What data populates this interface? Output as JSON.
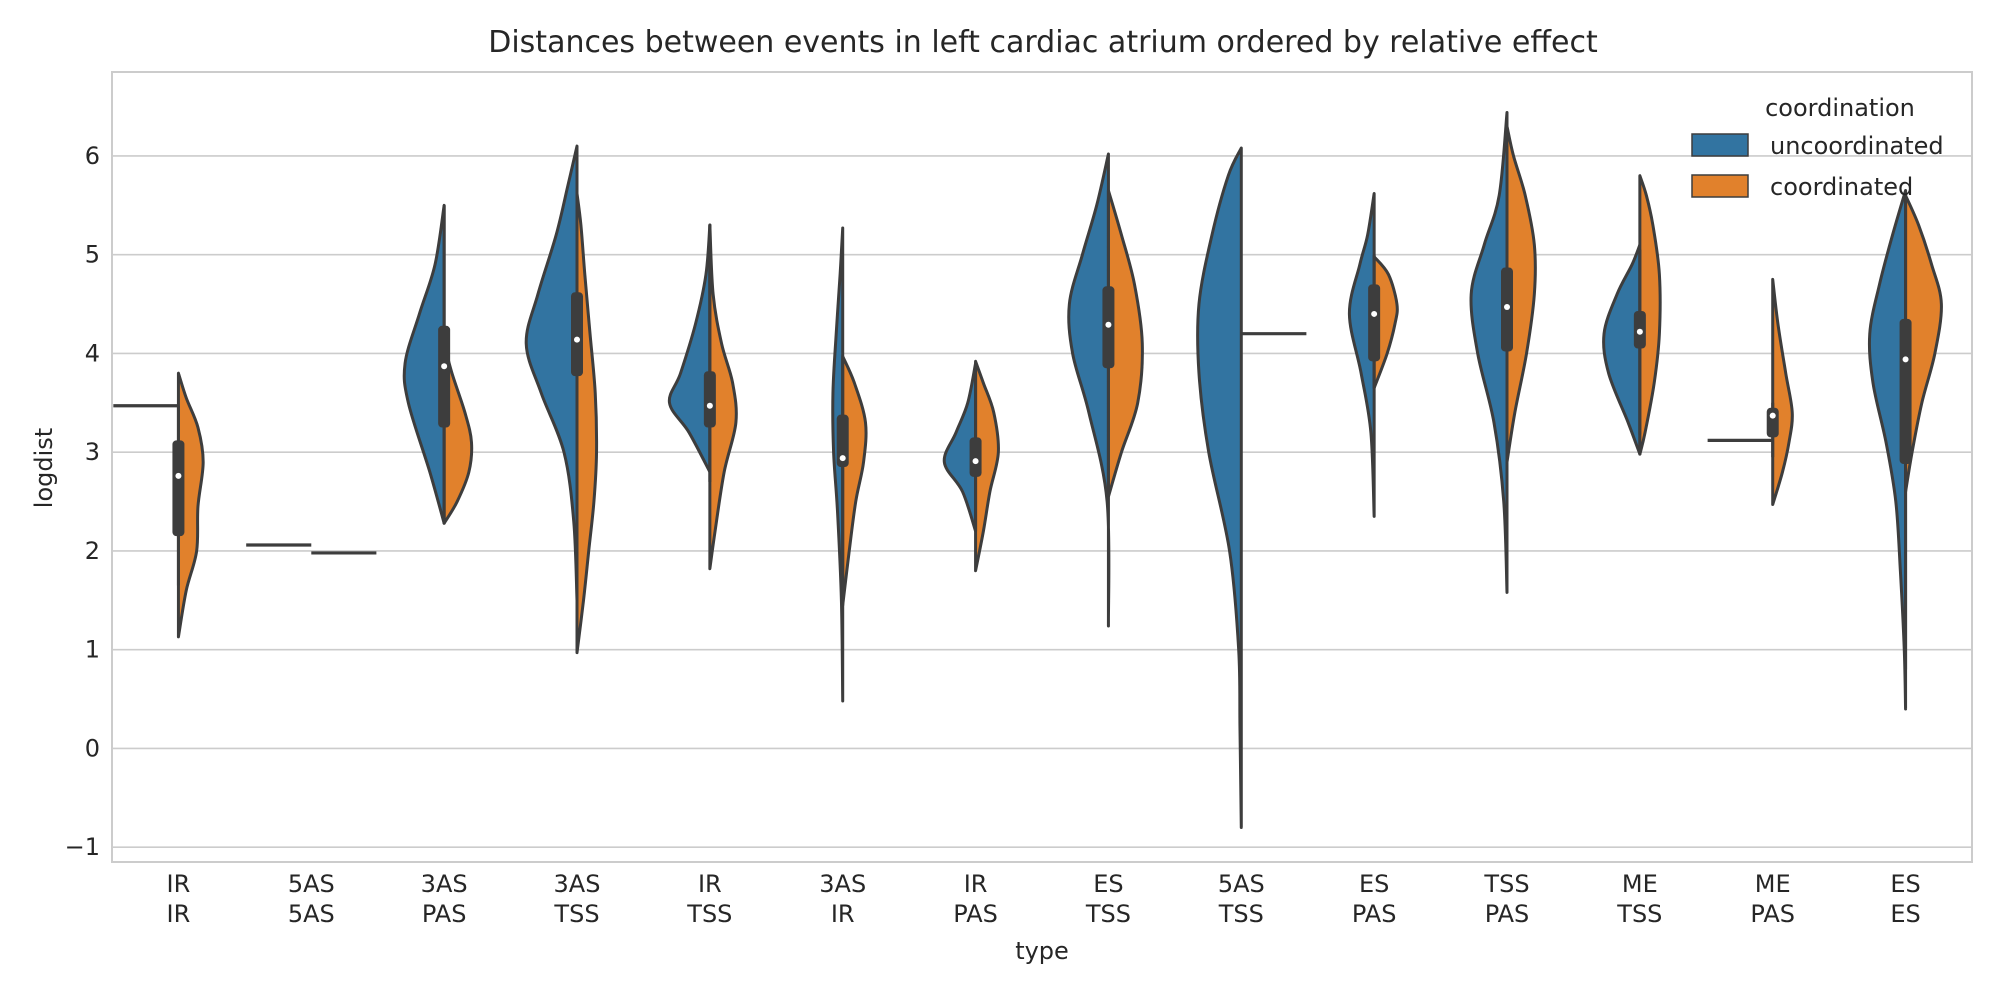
{
  "chart_data": {
    "type": "violin",
    "title": "Distances between events in left cardiac atrium ordered by relative effect",
    "xlabel": "type",
    "ylabel": "logdist",
    "ylim": [
      -1.15,
      6.85
    ],
    "yticks": [
      -1,
      0,
      1,
      2,
      3,
      4,
      5,
      6
    ],
    "ytick_labels": [
      "−1",
      "0",
      "1",
      "2",
      "3",
      "4",
      "5",
      "6"
    ],
    "grid": "horizontal",
    "legend": {
      "title": "coordination",
      "placement": "top-right",
      "entries": [
        "uncoordinated",
        "coordinated"
      ]
    },
    "colors": {
      "uncoordinated": "#3274a1",
      "coordinated": "#e1812c",
      "outline": "#3d3d3d",
      "grid": "#cccccc",
      "spine": "#cccccc"
    },
    "categories": [
      [
        "IR",
        "IR"
      ],
      [
        "5AS",
        "5AS"
      ],
      [
        "3AS",
        "PAS"
      ],
      [
        "3AS",
        "TSS"
      ],
      [
        "IR",
        "TSS"
      ],
      [
        "3AS",
        "IR"
      ],
      [
        "IR",
        "PAS"
      ],
      [
        "ES",
        "TSS"
      ],
      [
        "5AS",
        "TSS"
      ],
      [
        "ES",
        "PAS"
      ],
      [
        "TSS",
        "PAS"
      ],
      [
        "ME",
        "TSS"
      ],
      [
        "ME",
        "PAS"
      ],
      [
        "ES",
        "ES"
      ]
    ],
    "violins": [
      {
        "left": {
          "single": 3.47
        },
        "right": {
          "points": [
            [
              1.13,
              0
            ],
            [
              1.6,
              0.12
            ],
            [
              2.0,
              0.28
            ],
            [
              2.45,
              0.3
            ],
            [
              2.9,
              0.38
            ],
            [
              3.25,
              0.3
            ],
            [
              3.55,
              0.12
            ],
            [
              3.8,
              0
            ]
          ]
        },
        "box": {
          "q1": 2.15,
          "q3": 3.12,
          "median": 2.76,
          "wlo": 1.65,
          "whi": 3.47
        }
      },
      {
        "left": {
          "single": 2.06
        },
        "right": {
          "single": 1.98
        }
      },
      {
        "left": {
          "points": [
            [
              2.28,
              0
            ],
            [
              2.8,
              0.22
            ],
            [
              3.5,
              0.55
            ],
            [
              3.9,
              0.6
            ],
            [
              4.4,
              0.38
            ],
            [
              4.9,
              0.14
            ],
            [
              5.5,
              0
            ]
          ]
        },
        "right": {
          "points": [
            [
              2.28,
              0
            ],
            [
              2.5,
              0.2
            ],
            [
              2.8,
              0.38
            ],
            [
              3.1,
              0.42
            ],
            [
              3.4,
              0.32
            ],
            [
              3.8,
              0.12
            ],
            [
              4.1,
              0
            ]
          ]
        },
        "box": {
          "q1": 3.25,
          "q3": 4.28,
          "median": 3.87,
          "wlo": 2.28,
          "whi": 5.5
        }
      },
      {
        "left": {
          "points": [
            [
              1.5,
              0
            ],
            [
              2.3,
              0.05
            ],
            [
              3.0,
              0.2
            ],
            [
              3.6,
              0.55
            ],
            [
              4.1,
              0.78
            ],
            [
              4.6,
              0.6
            ],
            [
              5.2,
              0.32
            ],
            [
              5.7,
              0.14
            ],
            [
              6.1,
              0
            ]
          ]
        },
        "right": {
          "points": [
            [
              0.97,
              0
            ],
            [
              1.5,
              0.1
            ],
            [
              2.0,
              0.18
            ],
            [
              2.5,
              0.26
            ],
            [
              3.0,
              0.3
            ],
            [
              3.6,
              0.28
            ],
            [
              4.2,
              0.2
            ],
            [
              4.8,
              0.12
            ],
            [
              5.3,
              0.06
            ],
            [
              5.62,
              0
            ]
          ]
        },
        "box": {
          "q1": 3.77,
          "q3": 4.62,
          "median": 4.14,
          "wlo": 1.5,
          "whi": 6.1
        }
      },
      {
        "left": {
          "points": [
            [
              2.8,
              0
            ],
            [
              3.2,
              0.32
            ],
            [
              3.5,
              0.62
            ],
            [
              3.8,
              0.45
            ],
            [
              4.3,
              0.22
            ],
            [
              4.8,
              0.06
            ],
            [
              5.3,
              0
            ]
          ]
        },
        "right": {
          "points": [
            [
              1.82,
              0
            ],
            [
              2.2,
              0.08
            ],
            [
              2.8,
              0.22
            ],
            [
              3.3,
              0.4
            ],
            [
              3.7,
              0.35
            ],
            [
              4.1,
              0.18
            ],
            [
              4.6,
              0.05
            ],
            [
              5.3,
              0
            ]
          ]
        },
        "box": {
          "q1": 3.25,
          "q3": 3.82,
          "median": 3.47,
          "wlo": 2.7,
          "whi": 5.3
        }
      },
      {
        "left": {
          "points": [
            [
              0.48,
              0
            ],
            [
              1.5,
              0.02
            ],
            [
              2.4,
              0.08
            ],
            [
              3.0,
              0.14
            ],
            [
              3.6,
              0.15
            ],
            [
              4.2,
              0.1
            ],
            [
              4.8,
              0.04
            ],
            [
              5.27,
              0
            ]
          ]
        },
        "right": {
          "points": [
            [
              1.45,
              0
            ],
            [
              2.0,
              0.1
            ],
            [
              2.5,
              0.2
            ],
            [
              2.9,
              0.32
            ],
            [
              3.3,
              0.35
            ],
            [
              3.7,
              0.18
            ],
            [
              3.97,
              0
            ]
          ]
        },
        "box": {
          "q1": 2.85,
          "q3": 3.38,
          "median": 2.94,
          "wlo": 1.5,
          "whi": 3.95
        }
      },
      {
        "left": {
          "points": [
            [
              2.2,
              0
            ],
            [
              2.6,
              0.2
            ],
            [
              2.9,
              0.48
            ],
            [
              3.2,
              0.3
            ],
            [
              3.5,
              0.12
            ],
            [
              3.9,
              0
            ]
          ]
        },
        "right": {
          "points": [
            [
              1.8,
              0
            ],
            [
              2.2,
              0.12
            ],
            [
              2.6,
              0.22
            ],
            [
              3.0,
              0.35
            ],
            [
              3.4,
              0.28
            ],
            [
              3.7,
              0.12
            ],
            [
              3.92,
              0
            ]
          ]
        },
        "box": {
          "q1": 2.75,
          "q3": 3.15,
          "median": 2.91,
          "wlo": 2.2,
          "whi": 3.85
        }
      },
      {
        "left": {
          "points": [
            [
              1.24,
              0
            ],
            [
              2.5,
              0.02
            ],
            [
              3.4,
              0.3
            ],
            [
              4.0,
              0.55
            ],
            [
              4.5,
              0.6
            ],
            [
              5.0,
              0.4
            ],
            [
              5.5,
              0.18
            ],
            [
              6.02,
              0
            ]
          ]
        },
        "right": {
          "points": [
            [
              2.55,
              0
            ],
            [
              3.0,
              0.2
            ],
            [
              3.5,
              0.45
            ],
            [
              4.1,
              0.52
            ],
            [
              4.7,
              0.4
            ],
            [
              5.2,
              0.2
            ],
            [
              5.65,
              0
            ]
          ]
        },
        "box": {
          "q1": 3.85,
          "q3": 4.68,
          "median": 4.29,
          "wlo": 2.55,
          "whi": 5.65
        }
      },
      {
        "left": {
          "points": [
            [
              -0.8,
              0
            ],
            [
              0.2,
              0.02
            ],
            [
              1.0,
              0.04
            ],
            [
              2.0,
              0.18
            ],
            [
              3.0,
              0.5
            ],
            [
              3.8,
              0.65
            ],
            [
              4.5,
              0.65
            ],
            [
              5.2,
              0.45
            ],
            [
              5.8,
              0.2
            ],
            [
              6.08,
              0
            ]
          ]
        },
        "right": {
          "single": 4.2
        },
        "box": null
      },
      {
        "left": {
          "points": [
            [
              2.35,
              0
            ],
            [
              3.2,
              0.05
            ],
            [
              3.8,
              0.2
            ],
            [
              4.4,
              0.38
            ],
            [
              4.9,
              0.22
            ],
            [
              5.2,
              0.1
            ],
            [
              5.62,
              0
            ]
          ]
        },
        "right": {
          "points": [
            [
              3.65,
              0
            ],
            [
              4.0,
              0.2
            ],
            [
              4.3,
              0.32
            ],
            [
              4.5,
              0.35
            ],
            [
              4.8,
              0.22
            ],
            [
              4.98,
              0
            ]
          ]
        },
        "box": {
          "q1": 3.92,
          "q3": 4.7,
          "median": 4.4,
          "wlo": 3.65,
          "whi": 5.0
        }
      },
      {
        "left": {
          "points": [
            [
              1.58,
              0
            ],
            [
              2.5,
              0.05
            ],
            [
              3.3,
              0.2
            ],
            [
              4.0,
              0.45
            ],
            [
              4.6,
              0.55
            ],
            [
              5.1,
              0.35
            ],
            [
              5.6,
              0.12
            ],
            [
              6.44,
              0
            ]
          ]
        },
        "right": {
          "points": [
            [
              2.9,
              0
            ],
            [
              3.4,
              0.12
            ],
            [
              4.0,
              0.3
            ],
            [
              4.6,
              0.42
            ],
            [
              5.1,
              0.42
            ],
            [
              5.6,
              0.28
            ],
            [
              6.0,
              0.1
            ],
            [
              6.3,
              0
            ]
          ]
        },
        "box": {
          "q1": 4.02,
          "q3": 4.87,
          "median": 4.47,
          "wlo": 3.3,
          "whi": 6.1
        }
      },
      {
        "left": {
          "points": [
            [
              2.98,
              0
            ],
            [
              3.3,
              0.18
            ],
            [
              3.8,
              0.48
            ],
            [
              4.2,
              0.55
            ],
            [
              4.6,
              0.35
            ],
            [
              4.9,
              0.12
            ],
            [
              5.1,
              0
            ]
          ]
        },
        "right": {
          "points": [
            [
              2.98,
              0
            ],
            [
              3.2,
              0.08
            ],
            [
              3.7,
              0.22
            ],
            [
              4.2,
              0.3
            ],
            [
              4.8,
              0.3
            ],
            [
              5.3,
              0.2
            ],
            [
              5.6,
              0.1
            ],
            [
              5.8,
              0
            ]
          ]
        },
        "box": {
          "q1": 4.05,
          "q3": 4.43,
          "median": 4.22,
          "wlo": 3.18,
          "whi": 5.05
        }
      },
      {
        "left": {
          "single": 3.12
        },
        "right": {
          "points": [
            [
              2.47,
              0
            ],
            [
              2.8,
              0.15
            ],
            [
              3.1,
              0.25
            ],
            [
              3.4,
              0.3
            ],
            [
              3.8,
              0.2
            ],
            [
              4.3,
              0.08
            ],
            [
              4.75,
              0
            ]
          ]
        },
        "box": {
          "q1": 3.15,
          "q3": 3.45,
          "median": 3.37,
          "wlo": 2.95,
          "whi": 3.5
        }
      },
      {
        "left": {
          "points": [
            [
              0.4,
              0
            ],
            [
              1.0,
              0.02
            ],
            [
              1.8,
              0.08
            ],
            [
              2.5,
              0.15
            ],
            [
              3.1,
              0.3
            ],
            [
              3.7,
              0.5
            ],
            [
              4.2,
              0.55
            ],
            [
              4.7,
              0.4
            ],
            [
              5.2,
              0.2
            ],
            [
              5.65,
              0
            ]
          ]
        },
        "right": {
          "points": [
            [
              2.6,
              0
            ],
            [
              3.0,
              0.1
            ],
            [
              3.5,
              0.25
            ],
            [
              4.0,
              0.45
            ],
            [
              4.5,
              0.55
            ],
            [
              4.9,
              0.4
            ],
            [
              5.3,
              0.2
            ],
            [
              5.6,
              0
            ]
          ]
        },
        "box": {
          "q1": 2.88,
          "q3": 4.35,
          "median": 3.94,
          "wlo": 0.8,
          "whi": 5.65
        }
      }
    ]
  }
}
